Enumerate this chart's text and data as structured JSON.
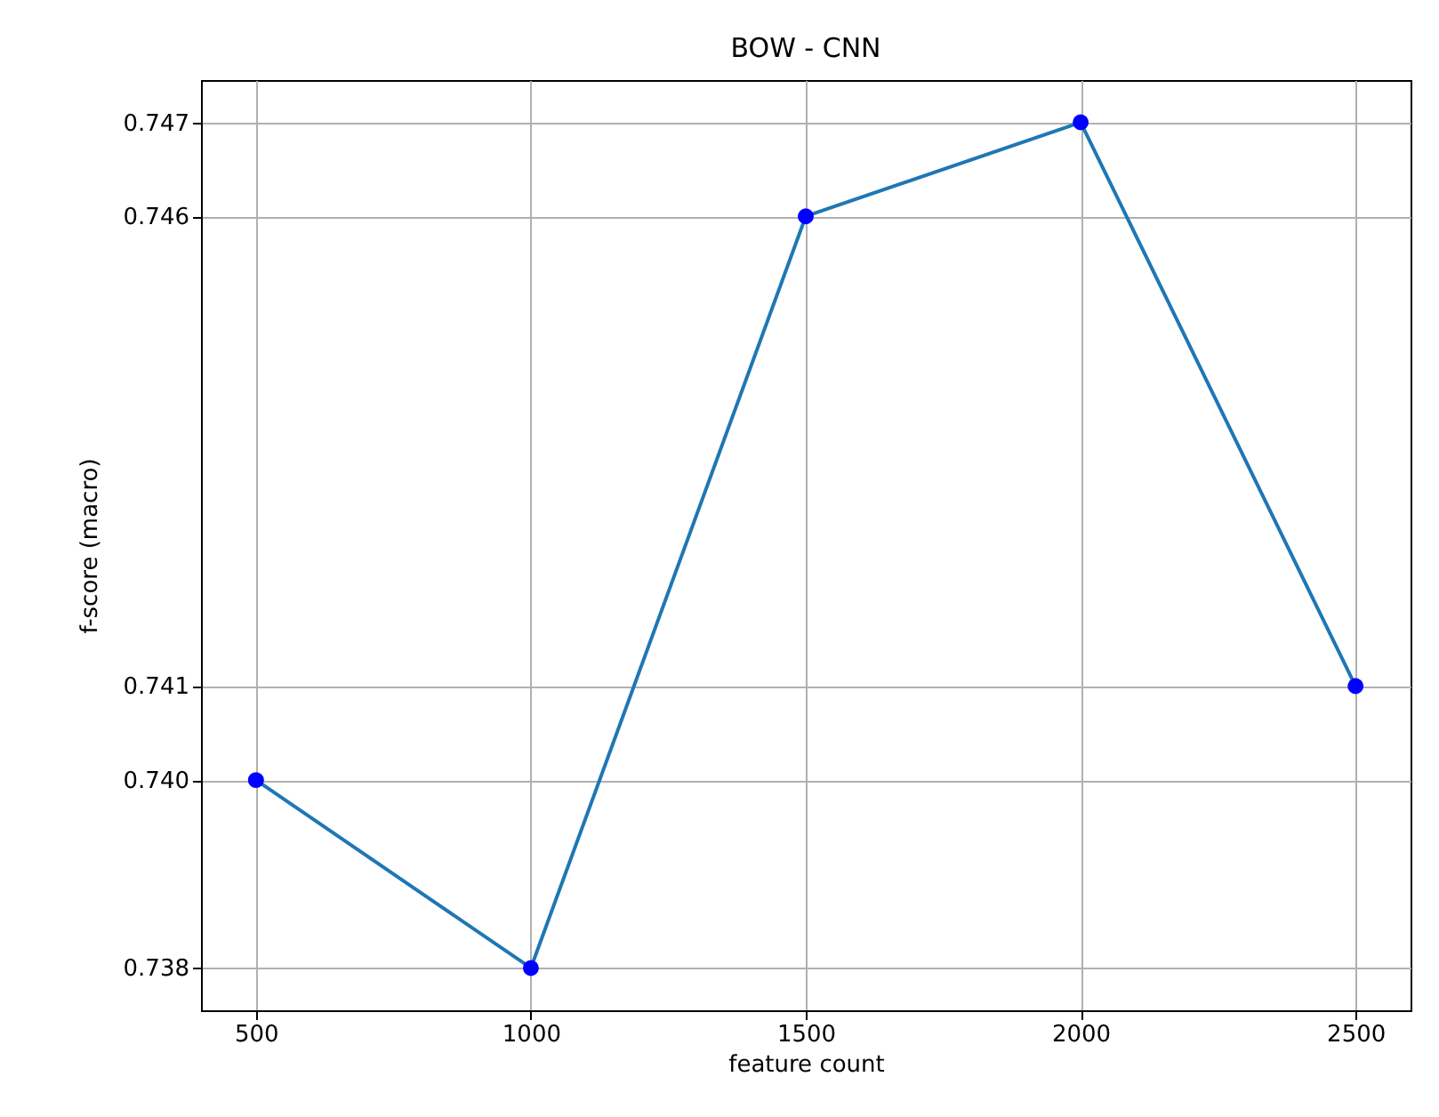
{
  "chart_data": {
    "type": "line",
    "title": "BOW - CNN",
    "xlabel": "feature count",
    "ylabel": "f-score (macro)",
    "x": [
      500,
      1000,
      1500,
      2000,
      2500
    ],
    "series": [
      {
        "color": "#1f77b4",
        "marker": "none",
        "values": [
          0.74,
          0.738,
          0.746,
          0.747,
          0.741
        ]
      },
      {
        "type": "scatter",
        "color": "#0000ff",
        "marker": "circle",
        "values": [
          0.74,
          0.738,
          0.746,
          0.747,
          0.741
        ]
      }
    ],
    "xlim": [
      400,
      2600
    ],
    "xticks": [
      500,
      1000,
      1500,
      2000,
      2500
    ],
    "ylim": [
      0.73755,
      0.74745
    ],
    "yticks": [
      0.738,
      {
        "value": 0.74,
        "label": "0.740"
      },
      0.741,
      0.746,
      0.747
    ],
    "grid": true
  }
}
